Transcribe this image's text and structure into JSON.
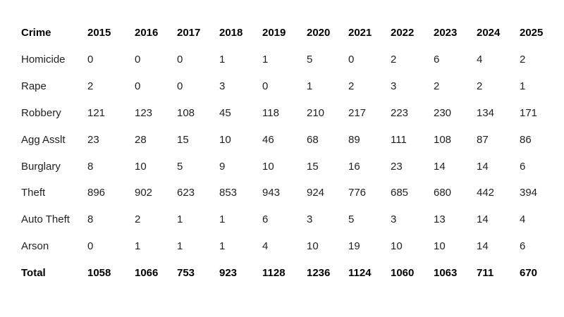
{
  "table": {
    "header": [
      "Crime",
      2015,
      2016,
      2017,
      2018,
      2019,
      2020,
      2021,
      2022,
      2023,
      2024,
      2025
    ],
    "rows": [
      [
        "Homicide",
        0,
        0,
        0,
        1,
        1,
        5,
        0,
        2,
        6,
        4,
        2
      ],
      [
        "Rape",
        2,
        0,
        0,
        3,
        0,
        1,
        2,
        3,
        2,
        2,
        1
      ],
      [
        "Robbery",
        121,
        123,
        108,
        45,
        118,
        210,
        217,
        223,
        230,
        134,
        171
      ],
      [
        "Agg Asslt",
        23,
        28,
        15,
        10,
        46,
        68,
        89,
        111,
        108,
        87,
        86
      ],
      [
        "Burglary",
        8,
        10,
        5,
        9,
        10,
        15,
        16,
        23,
        14,
        14,
        6
      ],
      [
        "Theft",
        896,
        902,
        623,
        853,
        943,
        924,
        776,
        685,
        680,
        442,
        394
      ],
      [
        "Auto Theft",
        8,
        2,
        1,
        1,
        6,
        3,
        5,
        3,
        13,
        14,
        4
      ],
      [
        "Arson",
        0,
        1,
        1,
        1,
        4,
        10,
        19,
        10,
        10,
        14,
        6
      ]
    ],
    "total": [
      "Total",
      1058,
      1066,
      753,
      923,
      1128,
      1236,
      1124,
      1060,
      1063,
      711,
      670
    ]
  }
}
